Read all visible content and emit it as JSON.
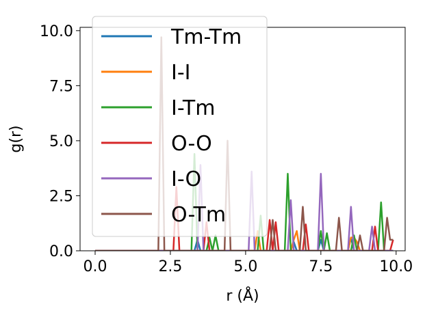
{
  "chart_data": {
    "type": "line",
    "title": "",
    "xlabel": "r (Å)",
    "ylabel": "g(r)",
    "xlim": [
      -0.5,
      10.3
    ],
    "ylim": [
      0,
      10.15
    ],
    "xticks": [
      0.0,
      2.5,
      5.0,
      7.5,
      10.0
    ],
    "yticks": [
      0.0,
      2.5,
      5.0,
      7.5,
      10.0
    ],
    "xtick_labels": [
      "0.0",
      "2.5",
      "5.0",
      "7.5",
      "10.0"
    ],
    "ytick_labels": [
      "0.0",
      "2.5",
      "5.0",
      "7.5",
      "10.0"
    ],
    "grid": false,
    "legend_position": "top-left",
    "x": [
      0.0,
      0.1,
      0.2,
      0.3,
      0.4,
      0.5,
      0.6,
      0.7,
      0.8,
      0.9,
      1.0,
      1.1,
      1.2,
      1.3,
      1.4,
      1.5,
      1.6,
      1.7,
      1.8,
      1.9,
      2.0,
      2.1,
      2.2,
      2.3,
      2.4,
      2.5,
      2.6,
      2.7,
      2.8,
      2.9,
      3.0,
      3.1,
      3.2,
      3.3,
      3.4,
      3.5,
      3.6,
      3.7,
      3.8,
      3.9,
      4.0,
      4.1,
      4.2,
      4.3,
      4.4,
      4.5,
      4.6,
      4.7,
      4.8,
      4.9,
      5.0,
      5.1,
      5.2,
      5.3,
      5.4,
      5.5,
      5.6,
      5.7,
      5.8,
      5.9,
      6.0,
      6.1,
      6.2,
      6.3,
      6.4,
      6.5,
      6.6,
      6.7,
      6.8,
      6.9,
      7.0,
      7.1,
      7.2,
      7.3,
      7.4,
      7.5,
      7.6,
      7.7,
      7.8,
      7.9,
      8.0,
      8.1,
      8.2,
      8.3,
      8.4,
      8.5,
      8.6,
      8.7,
      8.8,
      8.9,
      9.0,
      9.1,
      9.2,
      9.3,
      9.4,
      9.5,
      9.6,
      9.7,
      9.8,
      9.9
    ],
    "series": [
      {
        "name": "Tm-Tm",
        "color": "#1f77b4",
        "values": [
          0,
          0,
          0,
          0,
          0,
          0,
          0,
          0,
          0,
          0,
          0,
          0,
          0,
          0,
          0,
          0,
          0,
          0,
          0,
          0,
          0,
          0,
          0,
          0,
          0,
          0,
          0,
          0,
          0,
          0,
          0,
          0,
          0,
          0,
          0.5,
          0,
          0,
          0,
          0,
          0,
          0,
          0,
          0,
          0,
          0,
          0,
          0,
          0,
          0,
          0,
          0,
          0,
          0,
          0,
          0,
          0,
          0,
          0,
          0,
          0,
          0,
          0,
          0,
          0,
          0,
          0,
          0.4,
          0,
          0,
          0,
          0,
          0,
          0,
          0,
          0,
          0.5,
          0,
          0,
          0,
          0,
          0,
          0,
          0,
          0,
          0,
          0.6,
          0,
          0,
          0,
          0,
          0,
          0,
          0,
          0,
          0,
          0,
          0,
          0,
          0,
          0
        ]
      },
      {
        "name": "I-I",
        "color": "#ff7f0e",
        "values": [
          0,
          0,
          0,
          0,
          0,
          0,
          0,
          0,
          0,
          0,
          0,
          0,
          0,
          0,
          0,
          0,
          0,
          0,
          0,
          0,
          0,
          0,
          0,
          0,
          0,
          0,
          0,
          0,
          0,
          0,
          0,
          0,
          0,
          0,
          0,
          0,
          0,
          0,
          0,
          0,
          0,
          0,
          0,
          0,
          0,
          0,
          0,
          0,
          0,
          0,
          0,
          0,
          0,
          0,
          0.9,
          0,
          0,
          0,
          0,
          0,
          0,
          0,
          0,
          0,
          0,
          0,
          0.5,
          0.9,
          0,
          0,
          0,
          0,
          0,
          0,
          0,
          0,
          0,
          0,
          0,
          0,
          0,
          0,
          0,
          0,
          0,
          0.6,
          0.6,
          0.4,
          0,
          0,
          0,
          0,
          0,
          0,
          0,
          0,
          0,
          0,
          0,
          0
        ]
      },
      {
        "name": "I-Tm",
        "color": "#2ca02c",
        "values": [
          0,
          0,
          0,
          0,
          0,
          0,
          0,
          0,
          0,
          0,
          0,
          0,
          0,
          0,
          0,
          0,
          0,
          0,
          0,
          0,
          0,
          0,
          0,
          0,
          0,
          0,
          0,
          0,
          0,
          0,
          0,
          0,
          0,
          4.4,
          0,
          0,
          0,
          0,
          0.6,
          0,
          0.7,
          0,
          0,
          0,
          0,
          0,
          0,
          0,
          0,
          0,
          0,
          0,
          0,
          0,
          0,
          1.6,
          0,
          0,
          0,
          0,
          0,
          0,
          0,
          0,
          3.5,
          0,
          0,
          0,
          0,
          0,
          0,
          0,
          0,
          0,
          0,
          0.9,
          0,
          0.8,
          0,
          0,
          0,
          0,
          0,
          0,
          0,
          0,
          0.7,
          0,
          0,
          0,
          0,
          0,
          0,
          0,
          0,
          2.2,
          0,
          0,
          0,
          0
        ]
      },
      {
        "name": "O-O",
        "color": "#d62728",
        "values": [
          0,
          0,
          0,
          0,
          0,
          0,
          0,
          0,
          0,
          0,
          0,
          0,
          0,
          0,
          0,
          0,
          0,
          0,
          0,
          0,
          0,
          0,
          0,
          0,
          0,
          0,
          0,
          2.9,
          0,
          0,
          0,
          0,
          0,
          0,
          0,
          0,
          0,
          1.3,
          0,
          0,
          0,
          0,
          0,
          0,
          0,
          0,
          0,
          0,
          0,
          0,
          0,
          0,
          0,
          0,
          0,
          0,
          0,
          0,
          1.4,
          0,
          1.3,
          0,
          0,
          0,
          0,
          0,
          0,
          0,
          0,
          0,
          1.2,
          0,
          0,
          0,
          0,
          0,
          0,
          0,
          0,
          0,
          0,
          0,
          0,
          0,
          0,
          0,
          0,
          0,
          0,
          0,
          0,
          0,
          0,
          1.1,
          0,
          0,
          0,
          0,
          0,
          0.5
        ]
      },
      {
        "name": "I-O",
        "color": "#9467bd",
        "values": [
          0,
          0,
          0,
          0,
          0,
          0,
          0,
          0,
          0,
          0,
          0,
          0,
          0,
          0,
          0,
          0,
          0,
          0,
          0,
          0,
          0,
          0,
          0,
          0,
          0,
          0,
          0,
          0,
          0,
          0,
          0,
          0,
          0,
          0,
          0,
          3.9,
          0,
          0,
          0,
          0,
          0,
          0,
          0,
          0,
          0,
          0,
          0,
          0,
          0,
          0,
          0,
          0,
          3.6,
          0,
          0,
          0,
          0,
          0,
          0,
          0,
          0,
          0,
          0,
          0,
          0,
          2.3,
          0,
          0,
          0,
          0,
          0,
          0,
          0,
          0,
          0,
          3.5,
          0,
          0,
          0,
          0,
          0,
          0,
          0,
          0,
          0,
          2.0,
          0,
          0,
          0,
          0,
          0,
          0,
          1.1,
          0,
          0,
          0,
          0,
          0,
          0,
          0
        ]
      },
      {
        "name": "O-Tm",
        "color": "#8c564b",
        "values": [
          0,
          0,
          0,
          0,
          0,
          0,
          0,
          0,
          0,
          0,
          0,
          0,
          0,
          0,
          0,
          0,
          0,
          0,
          0,
          0,
          0,
          0,
          9.7,
          0,
          0,
          0,
          0,
          0,
          0,
          0,
          0,
          0,
          0,
          0,
          0,
          0,
          0,
          0,
          0,
          0,
          0,
          0,
          0,
          0,
          5.0,
          0,
          0,
          0,
          0,
          0,
          0,
          0,
          0,
          0,
          0,
          0,
          0,
          0,
          0,
          1.4,
          0,
          0,
          0,
          0,
          0,
          0,
          0,
          0,
          0,
          2.0,
          0,
          0,
          0,
          0,
          0,
          0,
          0,
          0,
          0,
          0,
          0,
          1.5,
          0,
          0,
          0,
          0,
          0,
          0,
          0.7,
          0,
          0,
          0,
          0,
          0,
          0,
          0,
          0,
          1.5,
          0.5,
          0.5
        ]
      }
    ]
  }
}
